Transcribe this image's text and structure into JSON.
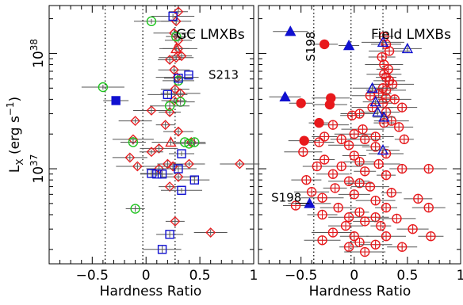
{
  "chart_data": [
    {
      "type": "scatter",
      "panel_title": "GC LMXBs",
      "xlabel": "Hardness Ratio",
      "ylabel": "L_X (erg s^-1)",
      "y_scale": "log",
      "xlim": [
        -0.9,
        1.0
      ],
      "ylim": [
        1.5e+36,
        2.6e+38
      ],
      "x_ticks": [
        -0.5,
        0,
        0.5,
        1
      ],
      "x_tick_labels": [
        "−0.5",
        "0",
        "0.5",
        "1"
      ],
      "y_tick_labels": [
        "10^37",
        "10^38"
      ],
      "reference_lines_x": [
        -0.38,
        -0.03,
        0.27
      ],
      "annotations": [
        {
          "text": "S213",
          "x": 0.58,
          "y": 6e+37
        }
      ],
      "series": [
        {
          "marker": "diamond",
          "color": "#e8191c",
          "filled": false,
          "points": [
            [
              0.3,
              2.3e+38
            ],
            [
              0.28,
              1.9e+38
            ],
            [
              0.26,
              1.5e+38
            ],
            [
              0.3,
              1.3e+38
            ],
            [
              0.3,
              1.1e+38
            ],
            [
              0.22,
              8.8e+37
            ],
            [
              0.28,
              9.2e+37
            ],
            [
              0.33,
              9.5e+37
            ],
            [
              0.26,
              7.2e+37
            ],
            [
              0.29,
              6.2e+37
            ],
            [
              0.27,
              4.9e+37
            ],
            [
              0.32,
              4.5e+37
            ],
            [
              0.26,
              3.9e+37
            ],
            [
              0.05,
              3.2e+37
            ],
            [
              0.22,
              3.1e+37
            ],
            [
              -0.1,
              2.6e+37
            ],
            [
              0.18,
              2.4e+37
            ],
            [
              0.3,
              2.1e+37
            ],
            [
              -0.12,
              1.8e+37
            ],
            [
              0.42,
              1.7e+37
            ],
            [
              0.12,
              1.5e+37
            ],
            [
              0.05,
              1.4e+37
            ],
            [
              -0.15,
              1.25e+37
            ],
            [
              0.2,
              1.1e+37
            ],
            [
              0.4,
              1.1e+37
            ],
            [
              -0.08,
              1.05e+37
            ],
            [
              0.25,
              1.05e+37
            ],
            [
              0.87,
              1.1e+37
            ],
            [
              0.12,
              1e+37
            ],
            [
              0.3,
              8.5e+36
            ],
            [
              0.22,
              7e+36
            ],
            [
              0.6,
              2.8e+36
            ],
            [
              0.27,
              3.5e+36
            ]
          ]
        },
        {
          "marker": "triangle",
          "color": "#e8191c",
          "filled": false,
          "points": [
            [
              0.28,
              1.1e+38
            ],
            [
              0.23,
              1.7e+37
            ]
          ]
        },
        {
          "marker": "circle",
          "color": "#1fc41f",
          "filled": false,
          "points": [
            [
              0.05,
              1.9e+38
            ],
            [
              0.28,
              1.4e+38
            ],
            [
              0.3,
              5.8e+37
            ],
            [
              -0.4,
              5.1e+37
            ],
            [
              0.32,
              3.8e+37
            ],
            [
              0.22,
              3.5e+37
            ],
            [
              -0.12,
              1.7e+37
            ],
            [
              0.36,
              1.7e+37
            ],
            [
              0.45,
              1.7e+37
            ],
            [
              0.4,
              1.65e+37
            ],
            [
              -0.1,
              4.5e+36
            ]
          ]
        },
        {
          "marker": "square",
          "color": "#1010d0",
          "filled": false,
          "points": [
            [
              0.25,
              2.1e+38
            ],
            [
              0.3,
              6.1e+37
            ],
            [
              0.2,
              4.4e+37
            ],
            [
              0.33,
              1.35e+37
            ],
            [
              0.3,
              1e+37
            ],
            [
              0.05,
              9.1e+36
            ],
            [
              0.1,
              9e+36
            ],
            [
              0.15,
              9e+36
            ],
            [
              0.45,
              8e+36
            ],
            [
              0.33,
              6.5e+36
            ],
            [
              0.22,
              2.7e+36
            ],
            [
              0.15,
              2e+36
            ]
          ]
        },
        {
          "marker": "square",
          "color": "#1010d0",
          "filled": true,
          "points": [
            [
              -0.28,
              3.9e+37
            ]
          ]
        }
      ]
    },
    {
      "type": "scatter",
      "panel_title": "Field LMXBs",
      "xlabel": "Hardness Ratio",
      "y_scale": "log",
      "xlim": [
        -0.9,
        1.0
      ],
      "ylim": [
        1.5e+36,
        2.6e+38
      ],
      "x_ticks": [
        -0.5,
        0,
        0.5,
        1
      ],
      "x_tick_labels": [
        "−0.5",
        "0",
        "0.5",
        "1"
      ],
      "reference_lines_x": [
        -0.38,
        -0.03,
        0.27
      ],
      "annotations": [
        {
          "text": "S198",
          "x": -0.37,
          "y": 8.5e+37,
          "rotated": true
        },
        {
          "text": "S198",
          "x": -0.78,
          "y": 5.2e+36
        }
      ],
      "series": [
        {
          "marker": "circle_cross",
          "color": "#e8191c",
          "filled": false,
          "points": [
            [
              0.28,
              1.4e+38
            ],
            [
              0.3,
              1.2e+38
            ],
            [
              0.33,
              1.05e+38
            ],
            [
              0.26,
              9.3e+37
            ],
            [
              0.28,
              8e+37
            ],
            [
              0.32,
              7.3e+37
            ],
            [
              0.28,
              6.6e+37
            ],
            [
              0.3,
              6.2e+37
            ],
            [
              0.33,
              5.8e+37
            ],
            [
              0.36,
              5.4e+37
            ],
            [
              0.27,
              5e+37
            ],
            [
              0.3,
              4.8e+37
            ],
            [
              0.23,
              4.5e+37
            ],
            [
              0.15,
              4.3e+37
            ],
            [
              0.3,
              4.1e+37
            ],
            [
              0.38,
              4e+37
            ],
            [
              0.27,
              3.7e+37
            ],
            [
              0.45,
              3.4e+37
            ],
            [
              0.17,
              3.4e+37
            ],
            [
              0.3,
              3.1e+37
            ],
            [
              0.05,
              3e+37
            ],
            [
              -0.02,
              2.9e+37
            ],
            [
              0.35,
              2.6e+37
            ],
            [
              0.28,
              2.5e+37
            ],
            [
              -0.2,
              2.4e+37
            ],
            [
              0.08,
              2.2e+37
            ],
            [
              0.42,
              2.3e+37
            ],
            [
              0.0,
              2e+37
            ],
            [
              -0.28,
              1.9e+37
            ],
            [
              0.2,
              1.9e+37
            ],
            [
              -0.12,
              1.8e+37
            ],
            [
              0.1,
              1.8e+37
            ],
            [
              0.47,
              1.8e+37
            ],
            [
              -0.33,
              1.7e+37
            ],
            [
              -0.05,
              1.6e+37
            ],
            [
              0.2,
              1.55e+37
            ],
            [
              -0.48,
              1.4e+37
            ],
            [
              0.0,
              1.3e+37
            ],
            [
              0.3,
              1.35e+37
            ],
            [
              -0.28,
              1.2e+37
            ],
            [
              0.05,
              1.15e+37
            ],
            [
              0.23,
              1.1e+37
            ],
            [
              -0.35,
              1.05e+37
            ],
            [
              -0.12,
              1.05e+37
            ],
            [
              0.45,
              1e+37
            ],
            [
              0.7,
              1e+37
            ],
            [
              0.1,
              9.5e+36
            ],
            [
              -0.2,
              9e+36
            ],
            [
              0.3,
              8.8e+36
            ],
            [
              -0.45,
              8e+36
            ],
            [
              -0.05,
              7.8e+36
            ],
            [
              0.05,
              7.5e+36
            ],
            [
              0.15,
              7e+36
            ],
            [
              -0.18,
              6.8e+36
            ],
            [
              -0.4,
              6.3e+36
            ],
            [
              0.35,
              6.2e+36
            ],
            [
              0.0,
              6e+36
            ],
            [
              -0.3,
              5.6e+36
            ],
            [
              0.6,
              5.5e+36
            ],
            [
              0.2,
              5.3e+36
            ],
            [
              -0.55,
              4.8e+36
            ],
            [
              -0.15,
              4.6e+36
            ],
            [
              0.3,
              4.6e+36
            ],
            [
              0.7,
              4.6e+36
            ],
            [
              0.05,
              4.2e+36
            ],
            [
              -0.3,
              4e+36
            ],
            [
              -0.05,
              3.8e+36
            ],
            [
              0.2,
              3.8e+36
            ],
            [
              0.4,
              3.7e+36
            ],
            [
              0.1,
              3.5e+36
            ],
            [
              -0.08,
              3.2e+36
            ],
            [
              0.25,
              3.2e+36
            ],
            [
              0.55,
              3e+36
            ],
            [
              -0.2,
              2.8e+36
            ],
            [
              0.0,
              2.6e+36
            ],
            [
              0.3,
              2.6e+36
            ],
            [
              0.72,
              2.6e+36
            ],
            [
              -0.3,
              2.4e+36
            ],
            [
              0.05,
              2.3e+36
            ],
            [
              0.2,
              2.2e+36
            ],
            [
              -0.05,
              2.1e+36
            ],
            [
              0.45,
              2.1e+36
            ],
            [
              0.1,
              1.9e+36
            ]
          ]
        },
        {
          "marker": "circle",
          "color": "#e8191c",
          "filled": true,
          "points": [
            [
              -0.28,
              1.2e+38
            ],
            [
              -0.22,
              4.1e+37
            ],
            [
              -0.5,
              3.7e+37
            ],
            [
              -0.23,
              3.6e+37
            ],
            [
              -0.33,
              2.5e+37
            ],
            [
              -0.47,
              1.75e+37
            ]
          ]
        },
        {
          "marker": "triangle",
          "color": "#1010d0",
          "filled": true,
          "points": [
            [
              -0.6,
              1.55e+38
            ],
            [
              -0.05,
              1.17e+38
            ],
            [
              -0.65,
              4.2e+37
            ],
            [
              -0.42,
              5e+36
            ]
          ]
        },
        {
          "marker": "triangle",
          "color": "#1010d0",
          "filled": false,
          "points": [
            [
              0.27,
              1.25e+38
            ],
            [
              0.5,
              1.1e+38
            ],
            [
              0.17,
              5e+37
            ],
            [
              0.2,
              3.8e+37
            ],
            [
              0.22,
              3.1e+37
            ],
            [
              0.28,
              2.8e+37
            ],
            [
              0.27,
              1.45e+37
            ]
          ]
        }
      ]
    }
  ]
}
